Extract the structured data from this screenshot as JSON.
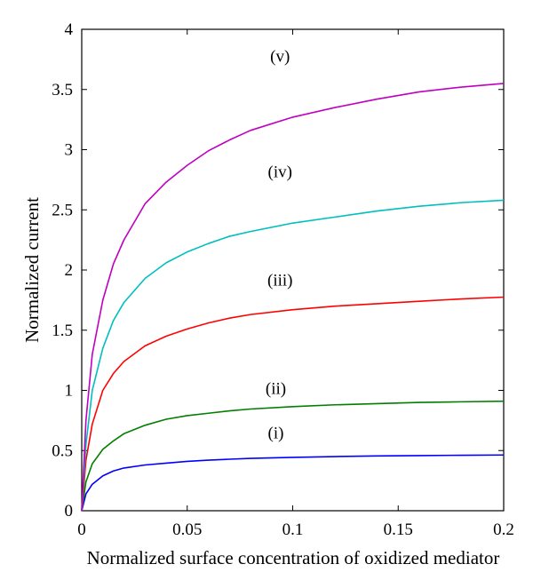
{
  "chart_data": {
    "type": "line",
    "xlabel": "Normalized surface concentration of oxidized mediator",
    "ylabel": "Normalized current",
    "xlim": [
      0,
      0.2
    ],
    "ylim": [
      0,
      4
    ],
    "xticks": [
      "0",
      "0.05",
      "0.1",
      "0.15",
      "0.2"
    ],
    "yticks": [
      "0",
      "0.5",
      "1",
      "1.5",
      "2",
      "2.5",
      "3",
      "3.5",
      "4"
    ],
    "xtick_values": [
      0,
      0.05,
      0.1,
      0.15,
      0.2
    ],
    "ytick_values": [
      0,
      0.5,
      1,
      1.5,
      2,
      2.5,
      3,
      3.5,
      4
    ],
    "grid": false,
    "series": [
      {
        "name": "(i)",
        "color": "#0000ff",
        "label_at": [
          0.092,
          0.6
        ],
        "x": [
          0,
          0.002,
          0.005,
          0.01,
          0.015,
          0.02,
          0.03,
          0.04,
          0.05,
          0.06,
          0.07,
          0.08,
          0.1,
          0.12,
          0.14,
          0.16,
          0.18,
          0.2
        ],
        "y": [
          0,
          0.14,
          0.22,
          0.29,
          0.33,
          0.355,
          0.38,
          0.395,
          0.41,
          0.42,
          0.428,
          0.435,
          0.443,
          0.45,
          0.455,
          0.458,
          0.461,
          0.463
        ]
      },
      {
        "name": "(ii)",
        "color": "#007f00",
        "label_at": [
          0.092,
          0.97
        ],
        "x": [
          0,
          0.002,
          0.005,
          0.01,
          0.015,
          0.02,
          0.03,
          0.04,
          0.05,
          0.06,
          0.07,
          0.08,
          0.1,
          0.12,
          0.14,
          0.16,
          0.18,
          0.2
        ],
        "y": [
          0,
          0.24,
          0.39,
          0.51,
          0.58,
          0.64,
          0.71,
          0.76,
          0.79,
          0.81,
          0.83,
          0.845,
          0.865,
          0.88,
          0.89,
          0.9,
          0.905,
          0.91
        ]
      },
      {
        "name": "(iii)",
        "color": "#ff0000",
        "label_at": [
          0.094,
          1.87
        ],
        "x": [
          0,
          0.002,
          0.005,
          0.01,
          0.015,
          0.02,
          0.03,
          0.04,
          0.05,
          0.06,
          0.07,
          0.08,
          0.1,
          0.12,
          0.14,
          0.16,
          0.18,
          0.2
        ],
        "y": [
          0,
          0.42,
          0.72,
          1.0,
          1.14,
          1.24,
          1.37,
          1.45,
          1.51,
          1.56,
          1.6,
          1.63,
          1.67,
          1.7,
          1.72,
          1.74,
          1.76,
          1.775
        ]
      },
      {
        "name": "(iv)",
        "color": "#00bfbf",
        "label_at": [
          0.094,
          2.77
        ],
        "x": [
          0,
          0.002,
          0.005,
          0.01,
          0.015,
          0.02,
          0.03,
          0.04,
          0.05,
          0.06,
          0.07,
          0.08,
          0.1,
          0.12,
          0.14,
          0.16,
          0.18,
          0.2
        ],
        "y": [
          0,
          0.55,
          1.0,
          1.35,
          1.58,
          1.73,
          1.93,
          2.06,
          2.15,
          2.22,
          2.28,
          2.32,
          2.39,
          2.44,
          2.49,
          2.53,
          2.56,
          2.58
        ]
      },
      {
        "name": "(v)",
        "color": "#bf00bf",
        "label_at": [
          0.094,
          3.73
        ],
        "x": [
          0,
          0.002,
          0.005,
          0.01,
          0.015,
          0.02,
          0.03,
          0.04,
          0.05,
          0.06,
          0.07,
          0.08,
          0.1,
          0.12,
          0.14,
          0.16,
          0.18,
          0.2
        ],
        "y": [
          0,
          0.75,
          1.3,
          1.75,
          2.05,
          2.25,
          2.55,
          2.73,
          2.87,
          2.99,
          3.08,
          3.16,
          3.27,
          3.35,
          3.42,
          3.48,
          3.52,
          3.55
        ]
      }
    ]
  }
}
